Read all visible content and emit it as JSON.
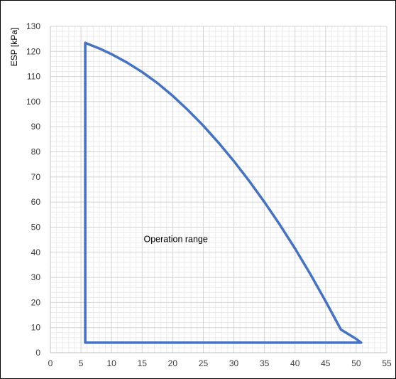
{
  "chart_data": {
    "type": "line",
    "title": "",
    "xlabel": "",
    "ylabel": "ESP [kPa]",
    "xlim": [
      0,
      55
    ],
    "ylim": [
      0,
      130
    ],
    "x_major_step": 5,
    "x_minor_step": 1,
    "y_major_step": 10,
    "y_minor_step": 2,
    "x_ticks": [
      "0",
      "5",
      "10",
      "15",
      "20",
      "25",
      "30",
      "35",
      "40",
      "45",
      "50",
      "55"
    ],
    "y_ticks": [
      "0",
      "10",
      "20",
      "30",
      "40",
      "50",
      "60",
      "70",
      "80",
      "90",
      "100",
      "110",
      "120",
      "130"
    ],
    "grid": true,
    "legend": "none",
    "series": [
      {
        "color": "#4472C4",
        "x": [
          5.7,
          5.7,
          8,
          10,
          12.5,
          15,
          17.5,
          20,
          22.5,
          25,
          27.5,
          30,
          32.5,
          35,
          37.5,
          40,
          42.5,
          45,
          47.5,
          50,
          50.8,
          5.7
        ],
        "y": [
          4,
          123.4,
          121.2,
          118.9,
          115.6,
          111.8,
          107.4,
          102.3,
          96.6,
          90.4,
          83.6,
          76.3,
          68.4,
          60.0,
          51.0,
          41.5,
          31.3,
          20.5,
          9.2,
          5.5,
          4,
          4
        ]
      }
    ],
    "annotations": [
      {
        "text": "Operation range",
        "x": 20.5,
        "y": 44
      }
    ]
  }
}
